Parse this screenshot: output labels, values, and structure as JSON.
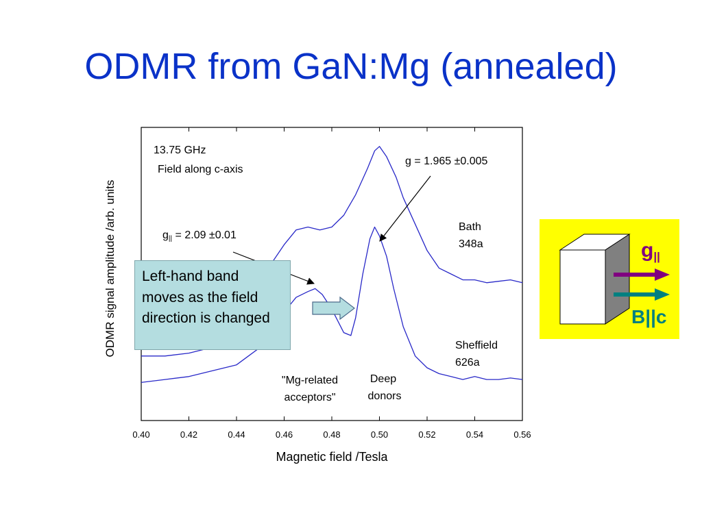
{
  "slide": {
    "title": "ODMR from GaN:Mg (annealed)"
  },
  "callout": {
    "text": "Left-hand band moves as the field direction is changed"
  },
  "inset": {
    "g_label": "g",
    "g_subscript": "||",
    "b_label_prefix": "B",
    "b_label_mid": "||",
    "b_label_suffix": "c",
    "background_color": "#ffff00",
    "g_color": "#800080",
    "b_color": "#008080"
  },
  "chart_data": {
    "type": "line",
    "xlabel": "Magnetic field /Tesla",
    "ylabel": "ODMR signal amplitude /arb. units",
    "xlim": [
      0.4,
      0.56
    ],
    "ylim": [
      0,
      1
    ],
    "xticks": [
      0.4,
      0.42,
      0.44,
      0.46,
      0.48,
      0.5,
      0.52,
      0.54,
      0.56
    ],
    "xtick_labels": [
      "0.40",
      "0.42",
      "0.44",
      "0.46",
      "0.48",
      "0.50",
      "0.52",
      "0.54",
      "0.56"
    ],
    "line_color": "#2828c8",
    "annotations": {
      "frequency": "13.75 GHz",
      "field_orientation": "Field along c-axis",
      "g_right": "g = 1.965 ±0.005",
      "g_left_prefix": "g",
      "g_left_subscript": "||",
      "g_left_value": " = 2.09 ±0.01",
      "label_mg_line1": "\"Mg-related",
      "label_mg_line2": "acceptors\"",
      "label_mg_color": "#dd0000",
      "label_deep_line1": "Deep",
      "label_deep_line2": "donors"
    },
    "series": [
      {
        "name": "Bath 348a",
        "label_line1": "Bath",
        "label_line2": "348a",
        "x": [
          0.4,
          0.41,
          0.42,
          0.43,
          0.44,
          0.445,
          0.45,
          0.455,
          0.46,
          0.465,
          0.47,
          0.475,
          0.48,
          0.485,
          0.49,
          0.495,
          0.498,
          0.5,
          0.503,
          0.507,
          0.51,
          0.515,
          0.52,
          0.525,
          0.53,
          0.535,
          0.54,
          0.545,
          0.55,
          0.555,
          0.56
        ],
        "y": [
          0.22,
          0.22,
          0.23,
          0.25,
          0.3,
          0.38,
          0.47,
          0.54,
          0.6,
          0.65,
          0.66,
          0.65,
          0.66,
          0.7,
          0.77,
          0.86,
          0.92,
          0.935,
          0.9,
          0.83,
          0.76,
          0.67,
          0.58,
          0.52,
          0.5,
          0.48,
          0.48,
          0.47,
          0.475,
          0.48,
          0.47
        ]
      },
      {
        "name": "Sheffield 626a",
        "label_line1": "Sheffield",
        "label_line2": "626a",
        "x": [
          0.4,
          0.41,
          0.42,
          0.43,
          0.44,
          0.445,
          0.45,
          0.455,
          0.46,
          0.465,
          0.47,
          0.473,
          0.476,
          0.48,
          0.485,
          0.488,
          0.49,
          0.493,
          0.496,
          0.498,
          0.5,
          0.503,
          0.506,
          0.51,
          0.515,
          0.52,
          0.525,
          0.53,
          0.535,
          0.54,
          0.545,
          0.55,
          0.555,
          0.56
        ],
        "y": [
          0.13,
          0.14,
          0.15,
          0.17,
          0.19,
          0.22,
          0.25,
          0.3,
          0.37,
          0.42,
          0.44,
          0.45,
          0.43,
          0.38,
          0.3,
          0.29,
          0.35,
          0.5,
          0.62,
          0.66,
          0.63,
          0.56,
          0.45,
          0.32,
          0.22,
          0.18,
          0.16,
          0.15,
          0.14,
          0.15,
          0.14,
          0.14,
          0.145,
          0.14
        ]
      }
    ]
  }
}
